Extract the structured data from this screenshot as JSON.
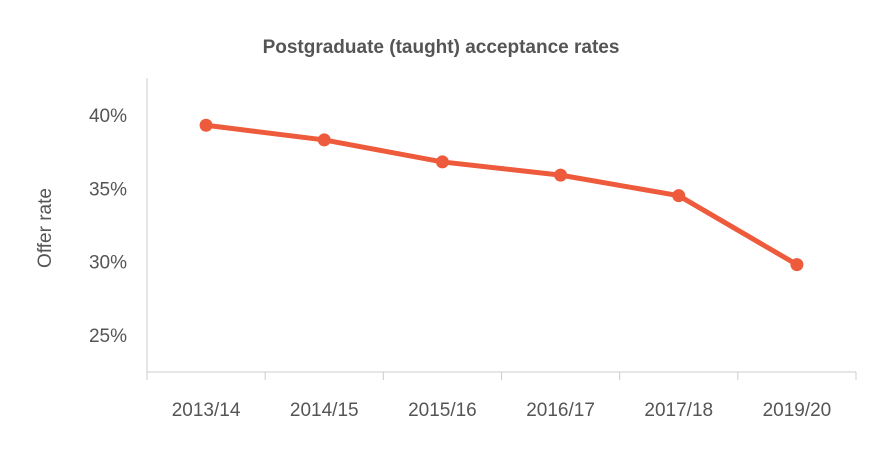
{
  "chart_data": {
    "type": "line",
    "title": "Postgraduate (taught) acceptance rates",
    "xlabel": "",
    "ylabel": "Offer rate",
    "categories": [
      "2013/14",
      "2014/15",
      "2015/16",
      "2016/17",
      "2017/18",
      "2019/20"
    ],
    "series": [
      {
        "values": [
          39.3,
          38.3,
          36.8,
          35.9,
          34.5,
          29.8
        ],
        "color": "#ee5a3c"
      }
    ],
    "ylim": [
      22.5,
      42.5
    ],
    "yticks": [
      25,
      30,
      35,
      40
    ],
    "ytick_labels": [
      "25%",
      "30%",
      "35%",
      "40%"
    ],
    "grid": false,
    "legend": "none"
  }
}
